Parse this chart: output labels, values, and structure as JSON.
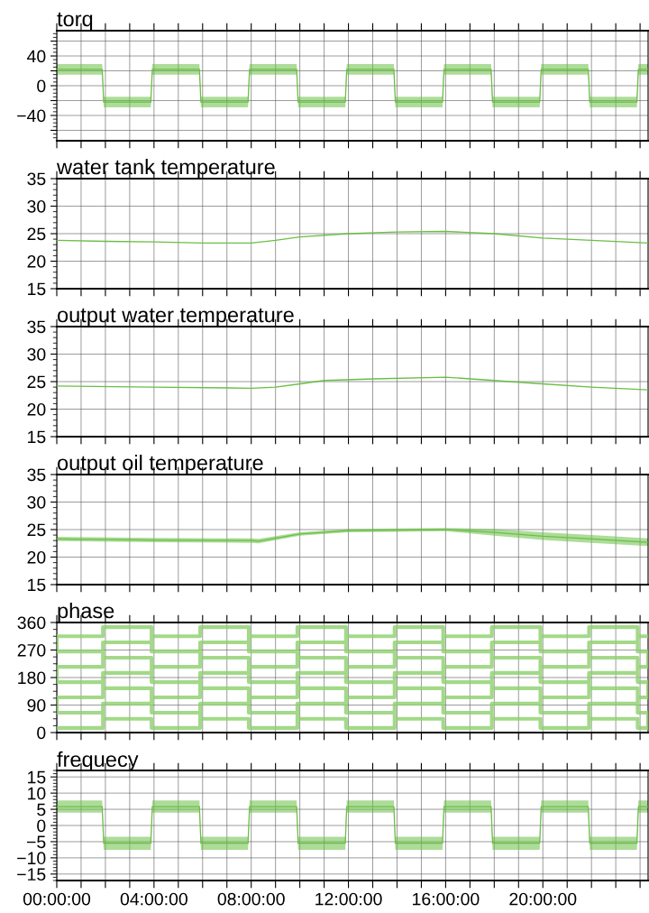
{
  "chart_data": [
    {
      "type": "line",
      "title": "torq",
      "x": [
        0,
        1.87,
        1.93,
        3.87,
        3.93,
        5.87,
        5.93,
        7.87,
        7.93,
        9.87,
        9.93,
        11.87,
        11.93,
        13.87,
        13.93,
        15.87,
        15.93,
        17.87,
        17.93,
        19.87,
        19.93,
        21.87,
        21.93,
        23.87,
        23.93,
        24.33
      ],
      "series": [
        {
          "color": "#6abf45",
          "values": [
            22,
            22,
            -22,
            -22,
            22,
            22,
            -22,
            -22,
            22,
            22,
            -22,
            -22,
            22,
            22,
            -22,
            -22,
            22,
            22,
            -22,
            -22,
            22,
            22,
            -22,
            -22,
            22,
            22
          ],
          "lower": [
            15,
            15,
            -29,
            -29,
            15,
            15,
            -29,
            -29,
            15,
            15,
            -29,
            -29,
            15,
            15,
            -29,
            -29,
            15,
            15,
            -29,
            -29,
            15,
            15,
            -29,
            -29,
            15,
            15
          ],
          "upper": [
            29,
            29,
            -15,
            -15,
            29,
            29,
            -15,
            -15,
            29,
            29,
            -15,
            -15,
            29,
            29,
            -15,
            -15,
            29,
            29,
            -15,
            -15,
            29,
            29,
            -15,
            -15,
            29,
            29
          ]
        }
      ],
      "xlim": [
        0,
        24.33
      ],
      "xticks": [
        0,
        1,
        2,
        3,
        4,
        5,
        6,
        7,
        8,
        9,
        10,
        11,
        12,
        13,
        14,
        15,
        16,
        17,
        18,
        19,
        20,
        21,
        22,
        23,
        24
      ],
      "ylim": [
        -74,
        74
      ],
      "yticks": [
        {
          "value": -60,
          "label": null
        },
        {
          "value": -40,
          "label": "−40"
        },
        {
          "value": -20,
          "label": null
        },
        0,
        {
          "value": 20,
          "label": null
        },
        40,
        {
          "value": 60,
          "label": null
        }
      ],
      "grid": true,
      "tick_labels": "y"
    },
    {
      "type": "line",
      "title": "water tank temperature",
      "x": [
        0,
        2,
        4,
        6,
        8,
        9,
        10,
        12,
        14,
        16,
        18,
        20,
        22,
        24.33
      ],
      "series": [
        {
          "color": "#6abf45",
          "values": [
            23.8,
            23.6,
            23.5,
            23.3,
            23.3,
            23.8,
            24.4,
            25.0,
            25.3,
            25.4,
            25.0,
            24.2,
            23.8,
            23.3
          ]
        }
      ],
      "xlim": [
        0,
        24.33
      ],
      "xticks": [
        0,
        1,
        2,
        3,
        4,
        5,
        6,
        7,
        8,
        9,
        10,
        11,
        12,
        13,
        14,
        15,
        16,
        17,
        18,
        19,
        20,
        21,
        22,
        23,
        24
      ],
      "ylim": [
        15,
        35
      ],
      "yticks": [
        15,
        20,
        25,
        30,
        35
      ],
      "grid": true,
      "tick_labels": "y"
    },
    {
      "type": "line",
      "title": "output water temperature",
      "x": [
        0,
        4,
        8,
        9,
        10,
        11,
        13,
        16,
        18,
        20,
        22,
        24.33
      ],
      "series": [
        {
          "color": "#6abf45",
          "values": [
            24.2,
            24.0,
            23.8,
            24.0,
            24.6,
            25.2,
            25.5,
            25.8,
            25.2,
            24.6,
            24.0,
            23.5
          ]
        }
      ],
      "xlim": [
        0,
        24.33
      ],
      "xticks": [
        0,
        1,
        2,
        3,
        4,
        5,
        6,
        7,
        8,
        9,
        10,
        11,
        12,
        13,
        14,
        15,
        16,
        17,
        18,
        19,
        20,
        21,
        22,
        23,
        24
      ],
      "ylim": [
        15,
        35
      ],
      "yticks": [
        15,
        20,
        25,
        30,
        35
      ],
      "grid": true,
      "tick_labels": "y"
    },
    {
      "type": "line",
      "title": "output oil temperature",
      "x": [
        0,
        4,
        8,
        8.3,
        10,
        12,
        14,
        16,
        18,
        20,
        22,
        24.33
      ],
      "series": [
        {
          "color": "#6abf45",
          "values": [
            23.3,
            23.1,
            23.0,
            22.9,
            24.2,
            24.8,
            24.9,
            25.0,
            24.5,
            23.8,
            23.3,
            22.7
          ],
          "lower": [
            22.9,
            22.7,
            22.6,
            22.5,
            23.9,
            24.5,
            24.6,
            24.7,
            23.9,
            23.1,
            22.6,
            22.0
          ],
          "upper": [
            23.7,
            23.5,
            23.4,
            23.3,
            24.5,
            25.1,
            25.2,
            25.3,
            25.1,
            24.5,
            24.0,
            23.4
          ]
        }
      ],
      "xlim": [
        0,
        24.33
      ],
      "xticks": [
        0,
        1,
        2,
        3,
        4,
        5,
        6,
        7,
        8,
        9,
        10,
        11,
        12,
        13,
        14,
        15,
        16,
        17,
        18,
        19,
        20,
        21,
        22,
        23,
        24
      ],
      "ylim": [
        15,
        35
      ],
      "yticks": [
        15,
        20,
        25,
        30,
        35
      ],
      "grid": true,
      "tick_labels": "y"
    },
    {
      "type": "line",
      "title": "phase",
      "x": [
        0,
        1.9,
        1.9,
        0,
        0,
        1.9,
        1.9,
        0,
        0,
        1.9,
        1.9,
        0,
        0,
        1.9,
        1.9,
        3.9,
        3.9,
        1.9,
        1.9,
        3.9,
        3.9,
        1.9,
        1.9,
        3.9,
        3.9,
        1.9,
        1.9,
        3.9,
        3.9,
        5.9,
        5.9,
        3.9,
        3.9,
        5.9,
        5.9,
        3.9,
        3.9,
        5.9,
        5.9,
        3.9,
        3.9,
        5.9,
        5.9,
        7.9,
        7.9,
        5.9,
        5.9,
        7.9,
        7.9,
        5.9,
        5.9,
        7.9,
        7.9,
        5.9,
        5.9,
        7.9,
        7.9,
        9.9,
        9.9,
        7.9,
        7.9,
        9.9,
        9.9,
        7.9,
        7.9,
        9.9,
        9.9,
        7.9,
        7.9,
        9.9,
        9.9,
        11.9,
        11.9,
        9.9,
        9.9,
        11.9,
        11.9,
        9.9,
        9.9,
        11.9,
        11.9,
        9.9,
        9.9,
        11.9,
        11.9,
        13.9,
        13.9,
        11.9,
        11.9,
        13.9,
        13.9,
        11.9,
        11.9,
        13.9,
        13.9,
        11.9,
        11.9,
        13.9,
        13.9,
        15.9,
        15.9,
        13.9,
        13.9,
        15.9,
        15.9,
        13.9,
        13.9,
        15.9,
        15.9,
        13.9,
        13.9,
        15.9,
        15.9,
        17.9,
        17.9,
        15.9,
        15.9,
        17.9,
        17.9,
        15.9,
        15.9,
        17.9,
        17.9,
        15.9,
        15.9,
        17.9,
        17.9,
        19.9,
        19.9,
        17.9,
        17.9,
        19.9,
        19.9,
        17.9,
        17.9,
        19.9,
        19.9,
        17.9,
        17.9,
        19.9,
        19.9,
        21.9,
        21.9,
        19.9,
        19.9,
        21.9,
        21.9,
        19.9,
        19.9,
        21.9,
        21.9,
        19.9,
        19.9,
        21.9,
        21.9,
        23.9,
        23.9,
        21.9,
        21.9,
        23.9,
        23.9,
        21.9,
        21.9,
        23.9,
        23.9,
        21.9,
        21.9,
        23.9,
        23.9,
        24.33,
        24.33,
        23.9,
        23.9,
        24.33,
        24.33,
        23.9,
        23.9,
        24.33,
        24.33,
        23.9,
        23.9,
        24.33
      ],
      "series": [
        {
          "color": "#8ccf6c",
          "values": [
            15,
            15,
            65,
            65,
            115,
            115,
            165,
            165,
            215,
            215,
            265,
            265,
            315,
            315,
            345,
            345,
            295,
            295,
            245,
            245,
            195,
            195,
            145,
            145,
            95,
            95,
            45,
            45,
            15,
            15,
            65,
            65,
            115,
            115,
            165,
            165,
            215,
            215,
            265,
            265,
            315,
            315,
            345,
            345,
            295,
            295,
            245,
            245,
            195,
            195,
            145,
            145,
            95,
            95,
            45,
            45,
            15,
            15,
            65,
            65,
            115,
            115,
            165,
            165,
            215,
            215,
            265,
            265,
            315,
            315,
            345,
            345,
            295,
            295,
            245,
            245,
            195,
            195,
            145,
            145,
            95,
            95,
            45,
            45,
            15,
            15,
            65,
            65,
            115,
            115,
            165,
            165,
            215,
            215,
            265,
            265,
            315,
            315,
            345,
            345,
            295,
            295,
            245,
            245,
            195,
            195,
            145,
            145,
            95,
            95,
            45,
            45,
            15,
            15,
            65,
            65,
            115,
            115,
            165,
            165,
            215,
            215,
            265,
            265,
            315,
            315,
            345,
            345,
            295,
            295,
            245,
            245,
            195,
            195,
            145,
            145,
            95,
            95,
            45,
            45,
            15,
            15,
            65,
            65,
            115,
            115,
            165,
            165,
            215,
            215,
            265,
            265,
            315,
            315,
            345,
            345,
            295,
            295,
            245,
            245,
            195,
            195,
            145,
            145,
            95,
            95,
            45,
            45,
            15,
            15,
            65,
            65,
            115,
            115,
            165,
            165,
            215,
            215,
            265,
            265,
            315,
            315
          ]
        }
      ],
      "xlim": [
        0,
        24.33
      ],
      "xticks": [
        0,
        1,
        2,
        3,
        4,
        5,
        6,
        7,
        8,
        9,
        10,
        11,
        12,
        13,
        14,
        15,
        16,
        17,
        18,
        19,
        20,
        21,
        22,
        23,
        24
      ],
      "ylim": [
        0,
        360
      ],
      "yticks": [
        0,
        90,
        180,
        270,
        360
      ],
      "grid": true,
      "tick_labels": "y"
    },
    {
      "type": "line",
      "title": "frequecy",
      "x": [
        0,
        1.87,
        1.93,
        3.87,
        3.93,
        5.87,
        5.93,
        7.87,
        7.93,
        9.87,
        9.93,
        11.87,
        11.93,
        13.87,
        13.93,
        15.87,
        15.93,
        17.87,
        17.93,
        19.87,
        19.93,
        21.87,
        21.93,
        23.87,
        23.93,
        24.33
      ],
      "series": [
        {
          "color": "#6abf45",
          "values": [
            5.8,
            5.8,
            -5.5,
            -5.5,
            5.8,
            5.8,
            -5.5,
            -5.5,
            5.8,
            5.8,
            -5.5,
            -5.5,
            5.8,
            5.8,
            -5.5,
            -5.5,
            5.8,
            5.8,
            -5.5,
            -5.5,
            5.8,
            5.8,
            -5.5,
            -5.5,
            5.8,
            5.8
          ],
          "lower": [
            4,
            4,
            -7.5,
            -7.5,
            4,
            4,
            -7.5,
            -7.5,
            4,
            4,
            -7.5,
            -7.5,
            4,
            4,
            -7.5,
            -7.5,
            4,
            4,
            -7.5,
            -7.5,
            4,
            4,
            -7.5,
            -7.5,
            4,
            4
          ],
          "upper": [
            7.7,
            7.7,
            -3.5,
            -3.5,
            7.7,
            7.7,
            -3.5,
            -3.5,
            7.7,
            7.7,
            -3.5,
            -3.5,
            7.7,
            7.7,
            -3.5,
            -3.5,
            7.7,
            7.7,
            -3.5,
            -3.5,
            7.7,
            7.7,
            -3.5,
            -3.5,
            7.7,
            7.7
          ]
        }
      ],
      "xlim": [
        0,
        24.33
      ],
      "xticks": [
        {
          "value": 0,
          "label": "00:00:00"
        },
        {
          "value": 1,
          "label": null
        },
        {
          "value": 2,
          "label": null
        },
        {
          "value": 3,
          "label": null
        },
        {
          "value": 4,
          "label": "04:00:00"
        },
        {
          "value": 5,
          "label": null
        },
        {
          "value": 6,
          "label": null
        },
        {
          "value": 7,
          "label": null
        },
        {
          "value": 8,
          "label": "08:00:00"
        },
        {
          "value": 9,
          "label": null
        },
        {
          "value": 10,
          "label": null
        },
        {
          "value": 11,
          "label": null
        },
        {
          "value": 12,
          "label": "12:00:00"
        },
        {
          "value": 13,
          "label": null
        },
        {
          "value": 14,
          "label": null
        },
        {
          "value": 15,
          "label": null
        },
        {
          "value": 16,
          "label": "16:00:00"
        },
        {
          "value": 17,
          "label": null
        },
        {
          "value": 18,
          "label": null
        },
        {
          "value": 19,
          "label": null
        },
        {
          "value": 20,
          "label": "20:00:00"
        },
        {
          "value": 21,
          "label": null
        },
        {
          "value": 22,
          "label": null
        },
        {
          "value": 23,
          "label": null
        },
        {
          "value": 24,
          "label": null
        }
      ],
      "ylim": [
        -17,
        17
      ],
      "yticks": [
        {
          "value": -15,
          "label": "−15"
        },
        {
          "value": -10,
          "label": "−10"
        },
        {
          "value": -5,
          "label": "−5"
        },
        0,
        5,
        10,
        15
      ],
      "grid": true
    }
  ]
}
